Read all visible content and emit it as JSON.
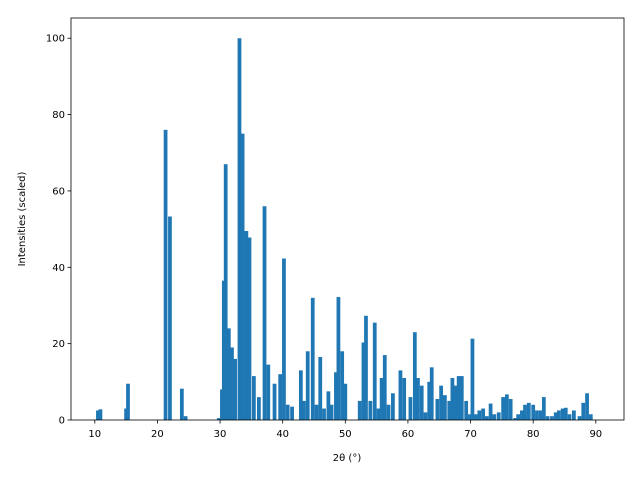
{
  "chart_data": {
    "type": "bar",
    "xlabel": "2θ (°)",
    "ylabel": "Intensities (scaled)",
    "color": "#1f77b4",
    "x": [
      10.5,
      10.9,
      15.0,
      15.3,
      21.3,
      22.0,
      23.9,
      24.5,
      29.8,
      30.3,
      30.6,
      30.9,
      31.4,
      31.9,
      32.4,
      33.1,
      33.6,
      34.2,
      34.7,
      35.4,
      36.2,
      37.1,
      37.7,
      38.7,
      39.6,
      40.2,
      40.8,
      41.5,
      42.9,
      43.4,
      44.0,
      44.8,
      45.4,
      46.0,
      46.6,
      47.3,
      47.8,
      48.5,
      48.9,
      49.5,
      50.0,
      52.3,
      52.9,
      53.3,
      54.0,
      54.7,
      55.3,
      55.8,
      56.3,
      56.9,
      57.6,
      58.8,
      59.4,
      60.4,
      61.1,
      61.6,
      62.2,
      62.8,
      63.4,
      63.8,
      64.7,
      65.3,
      65.9,
      66.6,
      67.1,
      67.6,
      68.1,
      68.6,
      69.3,
      69.9,
      70.3,
      70.8,
      71.4,
      72.0,
      72.6,
      73.2,
      73.8,
      74.5,
      75.2,
      75.8,
      76.4,
      77.1,
      77.6,
      78.2,
      78.7,
      79.3,
      80.0,
      80.6,
      81.2,
      81.7,
      82.3,
      83.0,
      83.6,
      84.1,
      84.7,
      85.2,
      85.8,
      86.5,
      87.4,
      88.0,
      88.6,
      89.2
    ],
    "values": [
      2.5,
      2.8,
      3,
      9.5,
      76,
      53.3,
      8.2,
      1,
      0.5,
      8,
      36.5,
      67,
      24,
      19,
      16,
      100,
      75,
      49.5,
      47.8,
      11.5,
      6,
      56,
      14.5,
      9.5,
      12,
      42.3,
      4,
      3.5,
      13,
      5,
      18,
      32,
      4,
      16.5,
      3,
      7.5,
      4,
      12.5,
      32.2,
      18,
      9.5,
      5,
      20.3,
      27.3,
      5,
      25.5,
      3,
      11,
      17,
      4,
      7,
      13,
      11,
      6,
      23,
      11,
      9,
      2,
      10,
      13.8,
      5.5,
      9,
      6.5,
      5,
      11,
      9,
      11.5,
      11.5,
      5,
      1.5,
      21.3,
      1.5,
      2.5,
      3,
      1,
      4.3,
      1.5,
      2,
      6,
      6.7,
      5.5,
      0.5,
      1.5,
      2.5,
      4,
      4.5,
      4,
      2.5,
      2.5,
      6,
      1,
      1,
      2,
      2.5,
      3,
      3.2,
      1.5,
      2.5,
      1,
      4.5,
      7,
      1.5
    ],
    "xlim": [
      6.2,
      94.5
    ],
    "ylim": [
      0,
      105.3
    ],
    "xticks": [
      10,
      20,
      30,
      40,
      50,
      60,
      70,
      80,
      90
    ],
    "yticks": [
      0,
      20,
      40,
      60,
      80,
      100
    ]
  }
}
